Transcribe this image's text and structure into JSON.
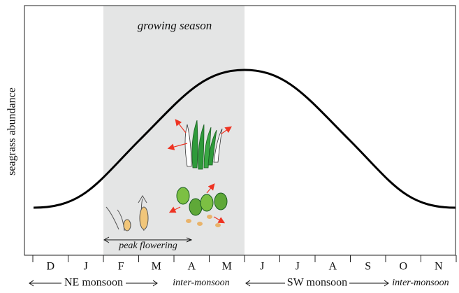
{
  "y_label": "seagrass abundance",
  "growing_season": "growing season",
  "peak_flowering": "peak flowering",
  "months": [
    "D",
    "J",
    "F",
    "M",
    "A",
    "M",
    "J",
    "J",
    "A",
    "S",
    "O",
    "N"
  ],
  "periods": [
    "NE monsoon",
    "inter-monsoon",
    "SW monsoon",
    "inter-monsoon"
  ]
}
